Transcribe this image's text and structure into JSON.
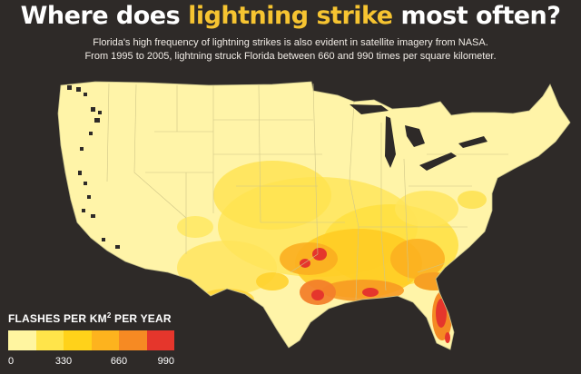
{
  "title": {
    "prefix": "Where does ",
    "highlight": "lightning strike",
    "suffix": " most often?"
  },
  "subtitle": {
    "line1": "Florida's high frequency of lightning strikes is also evident in satellite imagery from NASA.",
    "line2": "From 1995 to 2005, lightning struck Florida between 660 and 990 times per square kilometer."
  },
  "legend": {
    "title_main": "FLASHES PER KM",
    "title_sup": "2",
    "title_tail": " PER YEAR",
    "colors": [
      "#fff5a0",
      "#ffe44a",
      "#ffd21a",
      "#fdb31e",
      "#f68a23",
      "#e5362c"
    ],
    "ticks": [
      "0",
      "330",
      "660",
      "990"
    ]
  },
  "map": {
    "region": "contiguous United States",
    "base_color": "#fff4a8",
    "border_color": "#c9c38a",
    "highest_density_area": "Florida"
  }
}
